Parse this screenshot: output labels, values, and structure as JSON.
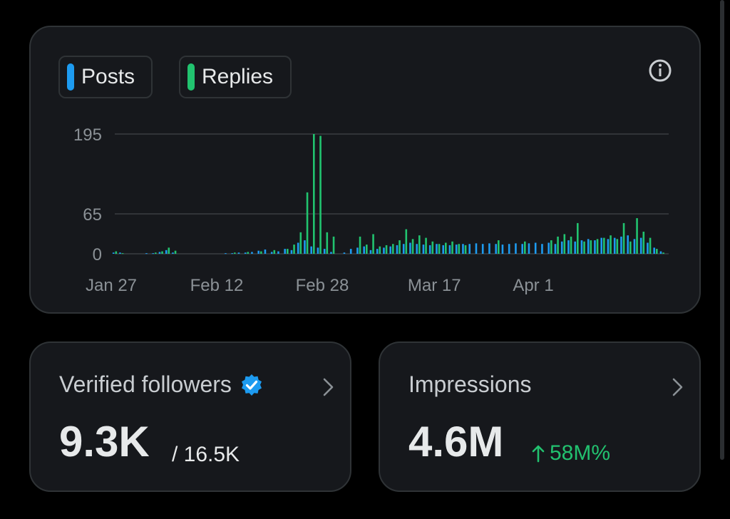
{
  "legend": {
    "posts_label": "Posts",
    "replies_label": "Replies",
    "posts_color": "#1d9bf0",
    "replies_color": "#21c36f"
  },
  "followers": {
    "label": "Verified followers",
    "value": "9.3K",
    "total": "/ 16.5K"
  },
  "impressions": {
    "label": "Impressions",
    "value": "4.6M",
    "change": "58M%"
  },
  "chart_data": {
    "type": "bar",
    "stacked": false,
    "y_ticks": [
      0,
      65,
      195
    ],
    "ylim": [
      0,
      195
    ],
    "grid": true,
    "legend_position": "top-left",
    "x_tick_labels": [
      {
        "day": 0,
        "label": "Jan 27"
      },
      {
        "day": 16,
        "label": "Feb 12"
      },
      {
        "day": 32,
        "label": "Feb 28"
      },
      {
        "day": 49,
        "label": "Mar 17"
      },
      {
        "day": 64,
        "label": "Apr 1"
      }
    ],
    "series": [
      {
        "name": "Posts",
        "color": "#1d9bf0",
        "points": [
          [
            0,
            2
          ],
          [
            1,
            2
          ],
          [
            5,
            1
          ],
          [
            6,
            1
          ],
          [
            7,
            3
          ],
          [
            8,
            6
          ],
          [
            9,
            2
          ],
          [
            17,
            1
          ],
          [
            18,
            1
          ],
          [
            19,
            2
          ],
          [
            20,
            2
          ],
          [
            21,
            3
          ],
          [
            22,
            5
          ],
          [
            23,
            7
          ],
          [
            24,
            3
          ],
          [
            25,
            4
          ],
          [
            26,
            8
          ],
          [
            27,
            6
          ],
          [
            28,
            18
          ],
          [
            29,
            22
          ],
          [
            30,
            12
          ],
          [
            31,
            10
          ],
          [
            32,
            8
          ],
          [
            33,
            3
          ],
          [
            35,
            2
          ],
          [
            36,
            8
          ],
          [
            37,
            10
          ],
          [
            38,
            12
          ],
          [
            39,
            6
          ],
          [
            40,
            8
          ],
          [
            41,
            10
          ],
          [
            42,
            12
          ],
          [
            43,
            14
          ],
          [
            44,
            16
          ],
          [
            45,
            18
          ],
          [
            46,
            16
          ],
          [
            47,
            15
          ],
          [
            48,
            14
          ],
          [
            49,
            16
          ],
          [
            50,
            14
          ],
          [
            51,
            14
          ],
          [
            52,
            15
          ],
          [
            53,
            16
          ],
          [
            54,
            16
          ],
          [
            55,
            17
          ],
          [
            56,
            16
          ],
          [
            57,
            17
          ],
          [
            58,
            16
          ],
          [
            59,
            15
          ],
          [
            60,
            16
          ],
          [
            61,
            17
          ],
          [
            62,
            16
          ],
          [
            63,
            17
          ],
          [
            64,
            18
          ],
          [
            65,
            16
          ],
          [
            66,
            18
          ],
          [
            67,
            16
          ],
          [
            68,
            20
          ],
          [
            69,
            22
          ],
          [
            70,
            20
          ],
          [
            71,
            22
          ],
          [
            72,
            24
          ],
          [
            73,
            22
          ],
          [
            74,
            26
          ],
          [
            75,
            24
          ],
          [
            76,
            26
          ],
          [
            77,
            28
          ],
          [
            78,
            30
          ],
          [
            79,
            24
          ],
          [
            80,
            26
          ],
          [
            81,
            18
          ],
          [
            82,
            10
          ],
          [
            83,
            4
          ]
        ]
      },
      {
        "name": "Replies",
        "color": "#21c36f",
        "points": [
          [
            0,
            4
          ],
          [
            1,
            1
          ],
          [
            6,
            2
          ],
          [
            7,
            4
          ],
          [
            8,
            10
          ],
          [
            9,
            5
          ],
          [
            18,
            2
          ],
          [
            20,
            3
          ],
          [
            22,
            4
          ],
          [
            24,
            6
          ],
          [
            26,
            8
          ],
          [
            27,
            15
          ],
          [
            28,
            35
          ],
          [
            29,
            100
          ],
          [
            30,
            195
          ],
          [
            31,
            192
          ],
          [
            32,
            35
          ],
          [
            33,
            28
          ],
          [
            37,
            28
          ],
          [
            38,
            15
          ],
          [
            39,
            32
          ],
          [
            40,
            12
          ],
          [
            41,
            14
          ],
          [
            42,
            16
          ],
          [
            43,
            22
          ],
          [
            44,
            40
          ],
          [
            45,
            24
          ],
          [
            46,
            30
          ],
          [
            47,
            26
          ],
          [
            48,
            20
          ],
          [
            49,
            16
          ],
          [
            50,
            18
          ],
          [
            51,
            20
          ],
          [
            52,
            16
          ],
          [
            53,
            14
          ],
          [
            58,
            22
          ],
          [
            62,
            20
          ],
          [
            66,
            22
          ],
          [
            67,
            28
          ],
          [
            68,
            32
          ],
          [
            69,
            28
          ],
          [
            70,
            50
          ],
          [
            71,
            20
          ],
          [
            72,
            22
          ],
          [
            73,
            24
          ],
          [
            74,
            26
          ],
          [
            75,
            30
          ],
          [
            76,
            24
          ],
          [
            77,
            50
          ],
          [
            78,
            20
          ],
          [
            79,
            58
          ],
          [
            80,
            36
          ],
          [
            81,
            26
          ],
          [
            82,
            8
          ],
          [
            83,
            2
          ]
        ]
      }
    ]
  }
}
